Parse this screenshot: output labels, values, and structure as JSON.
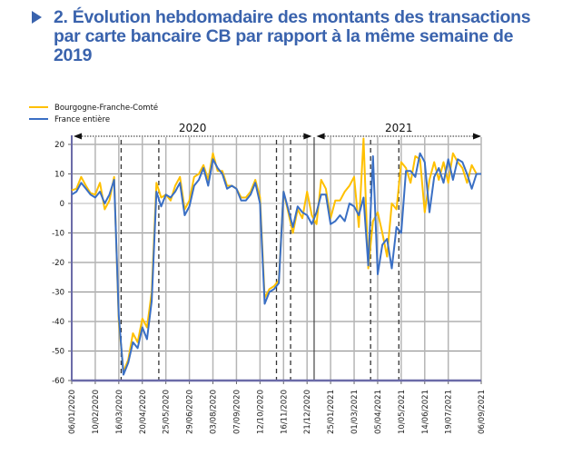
{
  "heading": {
    "marker_icon": "triangle-right-icon",
    "text": "2. Évolution hebdomadaire des montants des transactions par carte bancaire CB par rapport à la même semaine de 2019"
  },
  "chart_data": {
    "type": "line",
    "title": "2. Évolution hebdomadaire des montants des transactions par carte bancaire CB par rapport à la même semaine de 2019",
    "xlabel": "",
    "ylabel": "",
    "ylim": [
      -60,
      20
    ],
    "yticks": [
      "20",
      "10",
      "0",
      "-10",
      "-20",
      "-30",
      "-40",
      "-50",
      "-60"
    ],
    "ytick_values": [
      20,
      10,
      0,
      -10,
      -20,
      -30,
      -40,
      -50,
      -60
    ],
    "grid": true,
    "legend_position": "top-left",
    "x_start": "06/01/2020",
    "x_step": "1 week",
    "xtick_labels": [
      "06/01/2020",
      "10/02/2020",
      "16/03/2020",
      "20/04/2020",
      "25/05/2020",
      "29/06/2020",
      "03/08/2020",
      "07/09/2020",
      "12/10/2020",
      "16/11/2020",
      "21/12/2020",
      "25/01/2021",
      "01/03/2021",
      "05/04/2021",
      "10/05/2021",
      "14/06/2021",
      "19/07/2021",
      "06/09/2021"
    ],
    "xtick_weeks": [
      0,
      5,
      10,
      15,
      20,
      25,
      30,
      35,
      40,
      45,
      50,
      55,
      60,
      65,
      70,
      75,
      80,
      87
    ],
    "period_annotations": [
      {
        "label": "2020",
        "from_week": 0,
        "to_week": 51
      },
      {
        "label": "2021",
        "from_week": 52,
        "to_week": 87
      }
    ],
    "confinement_markers_weeks": [
      10.5,
      18.5,
      43.5,
      46.5,
      63.5,
      69.5
    ],
    "year_separator_week": 51.5,
    "series": [
      {
        "name": "Bourgogne-Franche-Comté",
        "color": "#ffc000",
        "values": [
          4.5,
          5,
          9,
          6,
          3.5,
          3,
          7,
          -2,
          1,
          9,
          -40,
          -57,
          -53,
          -44,
          -47,
          -39,
          -42,
          -30,
          7,
          2,
          3,
          1,
          6,
          9,
          -2,
          1,
          9,
          10,
          13,
          8,
          17,
          11,
          11,
          6,
          6,
          5,
          2,
          2,
          4,
          8,
          2,
          -32,
          -29,
          -28,
          -26,
          4,
          -3,
          -10,
          -2,
          -5,
          4,
          -4,
          -7,
          8,
          5,
          -5,
          1,
          1,
          4,
          6,
          9,
          -8,
          22,
          -22,
          -6,
          -3,
          -10,
          -18,
          0,
          -2,
          14,
          12,
          7,
          16,
          15,
          -3,
          8,
          14,
          8,
          14,
          7,
          17,
          14,
          12,
          7,
          13,
          10,
          10
        ]
      },
      {
        "name": "France entière",
        "color": "#3a6fc4",
        "values": [
          3,
          4,
          7,
          5,
          3,
          2,
          4,
          0,
          3,
          8,
          -38,
          -58,
          -54,
          -47,
          -49,
          -42,
          -46,
          -33,
          4,
          -1,
          3,
          2,
          4,
          7,
          -4,
          -1,
          6,
          8,
          12,
          6,
          15,
          12,
          10,
          5,
          6,
          5,
          1,
          1,
          3,
          7,
          0,
          -34,
          -30,
          -29,
          -27,
          4,
          -2,
          -8,
          -1,
          -3,
          -4,
          -7,
          -3,
          3,
          3,
          -7,
          -6,
          -4,
          -6,
          0,
          -1,
          -4,
          2,
          -21,
          16,
          -24,
          -14,
          -12,
          -22,
          -8,
          -10,
          11,
          11,
          9,
          17,
          14,
          -3,
          9,
          12,
          7,
          15,
          8,
          15,
          14,
          10,
          5,
          10,
          10
        ]
      }
    ]
  }
}
